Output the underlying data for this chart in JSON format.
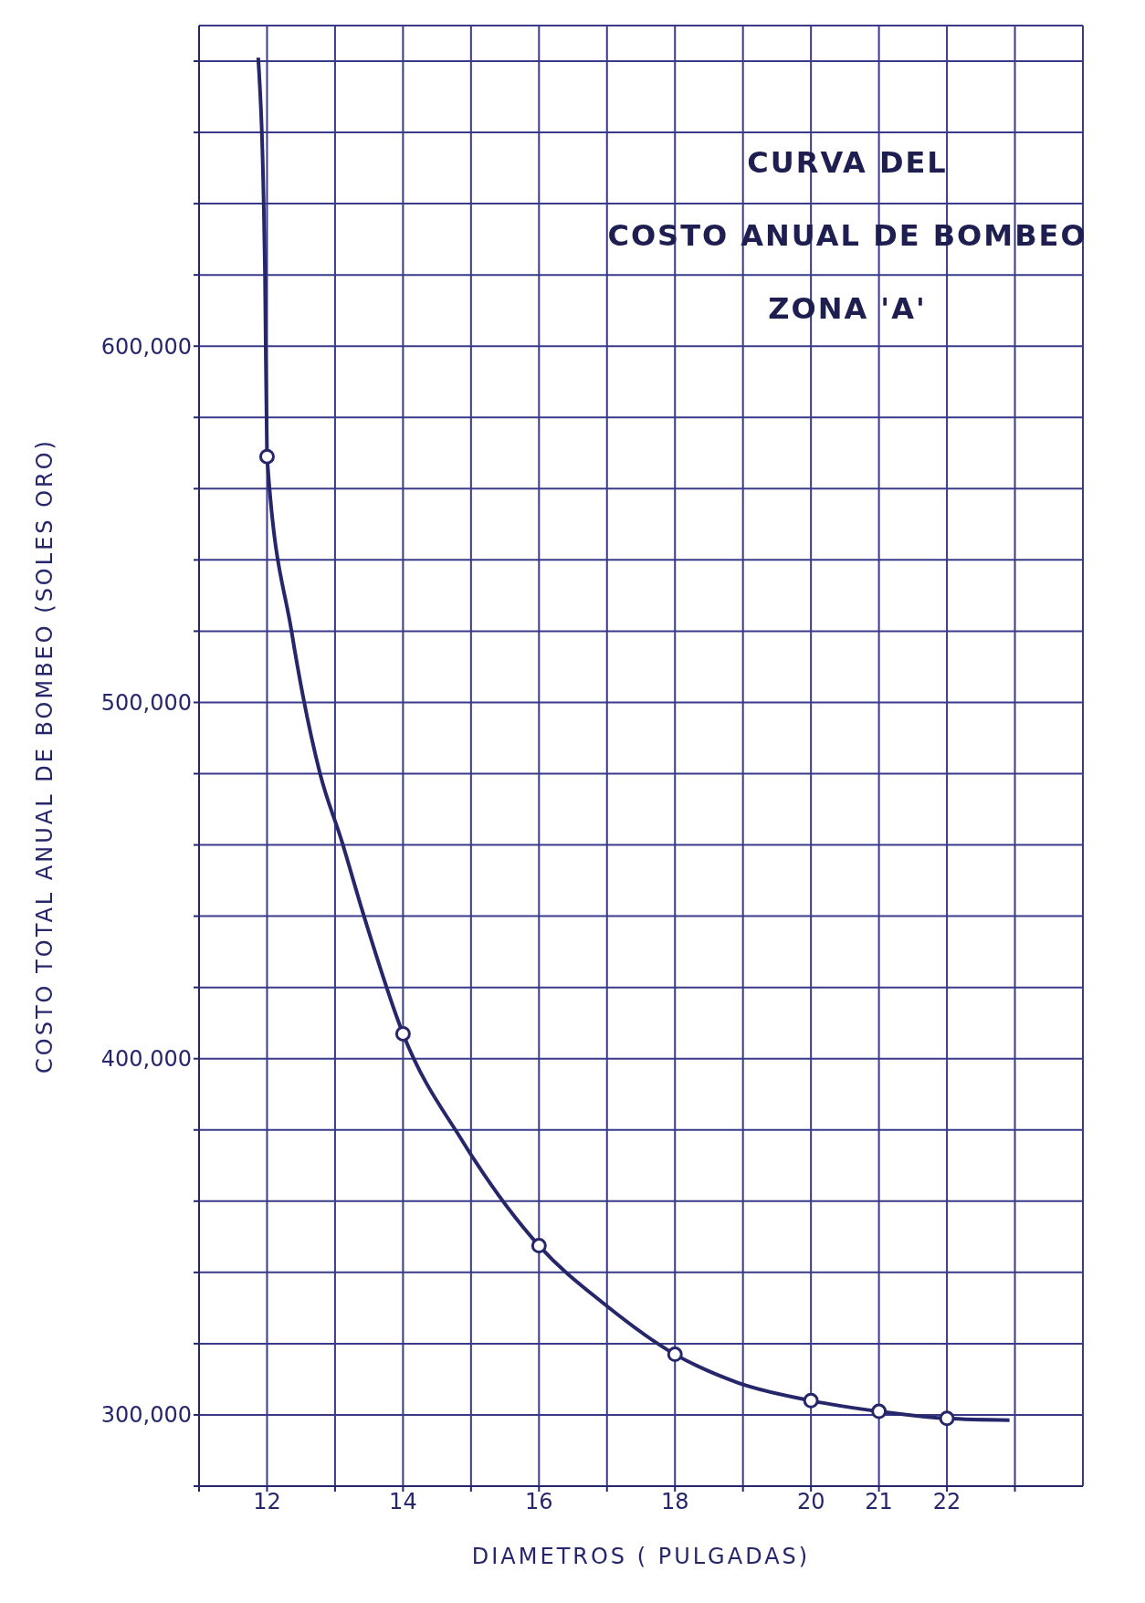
{
  "chart_data": {
    "type": "line",
    "title": "CURVA DEL\nCOSTO ANUAL DE BOMBEO\nZONA 'A'",
    "xlabel": "DIAMETROS ( PULGADAS)",
    "ylabel": "COSTO TOTAL ANUAL DE BOMBEO (SOLES ORO)",
    "xlim": [
      11,
      24
    ],
    "ylim": [
      280000,
      690000
    ],
    "xticks": [
      {
        "value": 11,
        "label": null
      },
      12,
      {
        "value": 13,
        "label": null
      },
      14,
      {
        "value": 15,
        "label": null
      },
      16,
      {
        "value": 17,
        "label": null
      },
      18,
      {
        "value": 19,
        "label": null
      },
      20,
      21,
      22,
      {
        "value": 23,
        "label": null
      }
    ],
    "yticks": [
      {
        "value": 280000,
        "label": null
      },
      {
        "value": 300000,
        "label": "300,000"
      },
      {
        "value": 320000,
        "label": null
      },
      {
        "value": 340000,
        "label": null
      },
      {
        "value": 360000,
        "label": null
      },
      {
        "value": 380000,
        "label": null
      },
      {
        "value": 400000,
        "label": "400,000"
      },
      {
        "value": 420000,
        "label": null
      },
      {
        "value": 440000,
        "label": null
      },
      {
        "value": 460000,
        "label": null
      },
      {
        "value": 480000,
        "label": null
      },
      {
        "value": 500000,
        "label": "500,000"
      },
      {
        "value": 520000,
        "label": null
      },
      {
        "value": 540000,
        "label": null
      },
      {
        "value": 560000,
        "label": null
      },
      {
        "value": 580000,
        "label": null
      },
      {
        "value": 600000,
        "label": "600,000"
      },
      {
        "value": 620000,
        "label": null
      },
      {
        "value": 640000,
        "label": null
      },
      {
        "value": 660000,
        "label": null
      },
      {
        "value": 680000,
        "label": null
      }
    ],
    "grid": true,
    "series": [
      {
        "marker": "none",
        "color": "#26266a",
        "x": [
          11.87,
          11.97,
          12,
          12.36,
          12.78,
          13.1,
          13.41,
          14,
          14.87,
          16,
          16.97,
          18,
          18.93,
          20,
          21,
          22,
          22.92
        ],
        "values": [
          681000,
          620000,
          569000,
          520000,
          480000,
          461000,
          441000,
          407000,
          377000,
          347500,
          331000,
          317000,
          309000,
          304000,
          301000,
          299000,
          298500
        ]
      },
      {
        "type": "scatter",
        "marker": "circle",
        "color": "#26266a",
        "x": [
          12,
          14,
          16,
          18,
          20,
          21,
          22
        ],
        "values": [
          569000,
          407000,
          347500,
          317000,
          304000,
          301000,
          299000
        ]
      }
    ]
  }
}
